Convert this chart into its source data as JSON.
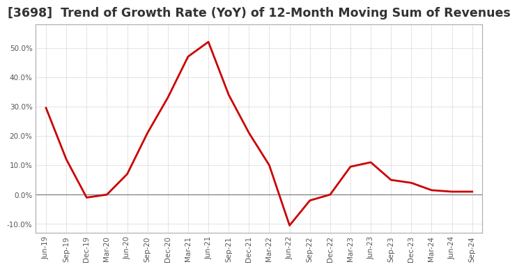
{
  "title": "[3698]  Trend of Growth Rate (YoY) of 12-Month Moving Sum of Revenues",
  "title_fontsize": 12.5,
  "line_color": "#cc0000",
  "line_width": 2.0,
  "background_color": "#ffffff",
  "grid_color": "#aaaaaa",
  "ylim": [
    -0.13,
    0.58
  ],
  "yticks": [
    -0.1,
    0.0,
    0.1,
    0.2,
    0.3,
    0.4,
    0.5
  ],
  "x_labels": [
    "Jun-19",
    "Sep-19",
    "Dec-19",
    "Mar-20",
    "Jun-20",
    "Sep-20",
    "Dec-20",
    "Mar-21",
    "Jun-21",
    "Sep-21",
    "Dec-21",
    "Mar-22",
    "Jun-22",
    "Sep-22",
    "Dec-22",
    "Mar-23",
    "Jun-23",
    "Sep-23",
    "Dec-23",
    "Mar-24",
    "Jun-24",
    "Sep-24"
  ],
  "y_values": [
    0.295,
    0.12,
    -0.01,
    0.0,
    0.07,
    0.21,
    0.33,
    0.47,
    0.52,
    0.34,
    0.21,
    0.1,
    -0.105,
    -0.02,
    0.0,
    0.095,
    0.11,
    0.05,
    0.04,
    0.015,
    0.01,
    0.01
  ],
  "spine_color": "#aaaaaa",
  "tick_label_color": "#555555",
  "zero_line_color": "#888888"
}
